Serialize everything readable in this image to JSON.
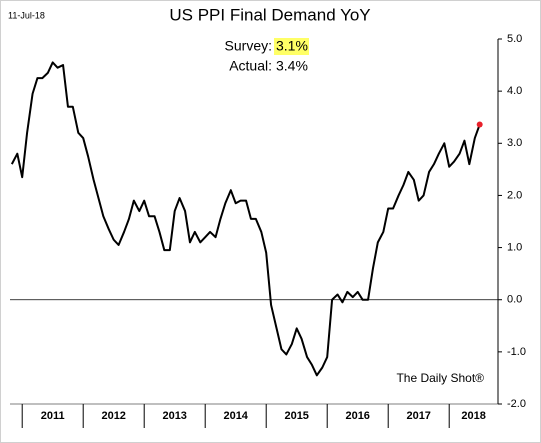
{
  "chart_data": {
    "type": "line",
    "date": "11-Jul-18",
    "title": "US PPI Final Demand YoY",
    "annotations": {
      "survey_label": "Survey:",
      "survey_value": "3.1%",
      "actual_label": "Actual:",
      "actual_value": "3.4%",
      "source": "The Daily Shot®"
    },
    "x": [
      2010.83,
      2010.92,
      2011.0,
      2011.08,
      2011.17,
      2011.25,
      2011.33,
      2011.42,
      2011.5,
      2011.58,
      2011.67,
      2011.75,
      2011.83,
      2011.92,
      2012.0,
      2012.08,
      2012.17,
      2012.25,
      2012.33,
      2012.42,
      2012.5,
      2012.58,
      2012.67,
      2012.75,
      2012.83,
      2012.92,
      2013.0,
      2013.08,
      2013.17,
      2013.25,
      2013.33,
      2013.42,
      2013.5,
      2013.58,
      2013.67,
      2013.75,
      2013.83,
      2013.92,
      2014.0,
      2014.08,
      2014.17,
      2014.25,
      2014.33,
      2014.42,
      2014.5,
      2014.58,
      2014.67,
      2014.75,
      2014.83,
      2014.92,
      2015.0,
      2015.08,
      2015.17,
      2015.25,
      2015.33,
      2015.42,
      2015.5,
      2015.58,
      2015.67,
      2015.75,
      2015.83,
      2015.92,
      2016.0,
      2016.08,
      2016.17,
      2016.25,
      2016.33,
      2016.42,
      2016.5,
      2016.58,
      2016.67,
      2016.75,
      2016.83,
      2016.92,
      2017.0,
      2017.08,
      2017.17,
      2017.25,
      2017.33,
      2017.42,
      2017.5,
      2017.58,
      2017.67,
      2017.75,
      2017.83,
      2017.92,
      2018.0,
      2018.08,
      2018.17,
      2018.25,
      2018.33,
      2018.42,
      2018.5
    ],
    "series": [
      {
        "name": "US PPI Final Demand YoY",
        "color": "#000000",
        "values": [
          2.6,
          2.8,
          2.35,
          3.2,
          3.95,
          4.25,
          4.25,
          4.35,
          4.55,
          4.45,
          4.5,
          3.7,
          3.7,
          3.2,
          3.1,
          2.75,
          2.3,
          1.95,
          1.6,
          1.35,
          1.15,
          1.05,
          1.3,
          1.55,
          1.9,
          1.7,
          1.9,
          1.6,
          1.6,
          1.3,
          0.95,
          0.95,
          1.7,
          1.95,
          1.7,
          1.1,
          1.3,
          1.1,
          1.2,
          1.3,
          1.2,
          1.55,
          1.85,
          2.1,
          1.85,
          1.9,
          1.9,
          1.55,
          1.55,
          1.3,
          0.9,
          -0.1,
          -0.55,
          -0.95,
          -1.05,
          -0.85,
          -0.55,
          -0.75,
          -1.1,
          -1.25,
          -1.45,
          -1.3,
          -1.1,
          0.0,
          0.1,
          -0.05,
          0.15,
          0.05,
          0.15,
          0.0,
          0.0,
          0.6,
          1.1,
          1.3,
          1.75,
          1.75,
          2.0,
          2.2,
          2.45,
          2.3,
          1.9,
          2.0,
          2.45,
          2.6,
          2.8,
          3.0,
          2.55,
          2.65,
          2.8,
          3.05,
          2.6,
          3.1,
          3.36
        ]
      }
    ],
    "highlight_last_color": "#e8212b",
    "xlim": [
      2010.8,
      2018.8
    ],
    "xticks": [
      2011,
      2012,
      2013,
      2014,
      2015,
      2016,
      2017,
      2018
    ],
    "ylim": [
      -2,
      5
    ],
    "yticks": [
      {
        "value": 5,
        "label": "5.0"
      },
      {
        "value": 4,
        "label": "4.0"
      },
      {
        "value": 3,
        "label": "3.0"
      },
      {
        "value": 2,
        "label": "2.0"
      },
      {
        "value": 1,
        "label": "1.0"
      },
      {
        "value": 0,
        "label": "0.0"
      },
      {
        "value": -1,
        "label": "-1.0"
      },
      {
        "value": -2,
        "label": "-2.0"
      }
    ],
    "zero_line": true
  }
}
